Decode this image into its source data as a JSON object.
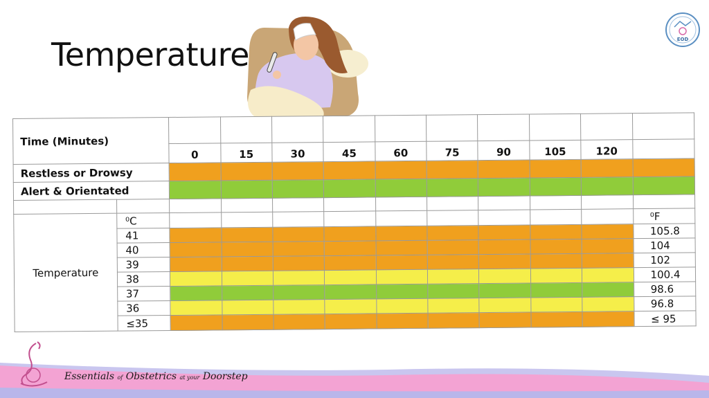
{
  "slide": {
    "title": "Temperature"
  },
  "logo": {
    "text": "EOD"
  },
  "chart": {
    "time_header": "Time (Minutes)",
    "times": [
      "0",
      "15",
      "30",
      "45",
      "60",
      "75",
      "90",
      "105",
      "120",
      ""
    ],
    "rows": [
      {
        "label": "Restless or Drowsy",
        "color": "orange"
      },
      {
        "label": "Alert & Orientated",
        "color": "green"
      }
    ],
    "temperature_label": "Temperature",
    "celsius_header": "⁰C",
    "fahrenheit_header": "⁰F",
    "scale": [
      {
        "c": "41",
        "f": "105.8",
        "color": "orange"
      },
      {
        "c": "40",
        "f": "104",
        "color": "orange"
      },
      {
        "c": "39",
        "f": "102",
        "color": "orange"
      },
      {
        "c": "38",
        "f": "100.4",
        "color": "yellow"
      },
      {
        "c": "37",
        "f": "98.6",
        "color": "green"
      },
      {
        "c": "36",
        "f": "96.8",
        "color": "yellow"
      },
      {
        "c": "≤35",
        "f": "≤ 95",
        "color": "orange"
      }
    ]
  },
  "colors": {
    "orange": "#f0a01e",
    "green": "#90cc3a",
    "yellow": "#f5ee4a",
    "footer_pink": "#f3a3d3",
    "footer_blue": "#c9c6ef"
  },
  "footer": {
    "brand_1": "Essentials",
    "brand_2": "of",
    "brand_3": "Obstetrics",
    "brand_4": "at your",
    "brand_5": "Doorstep"
  }
}
